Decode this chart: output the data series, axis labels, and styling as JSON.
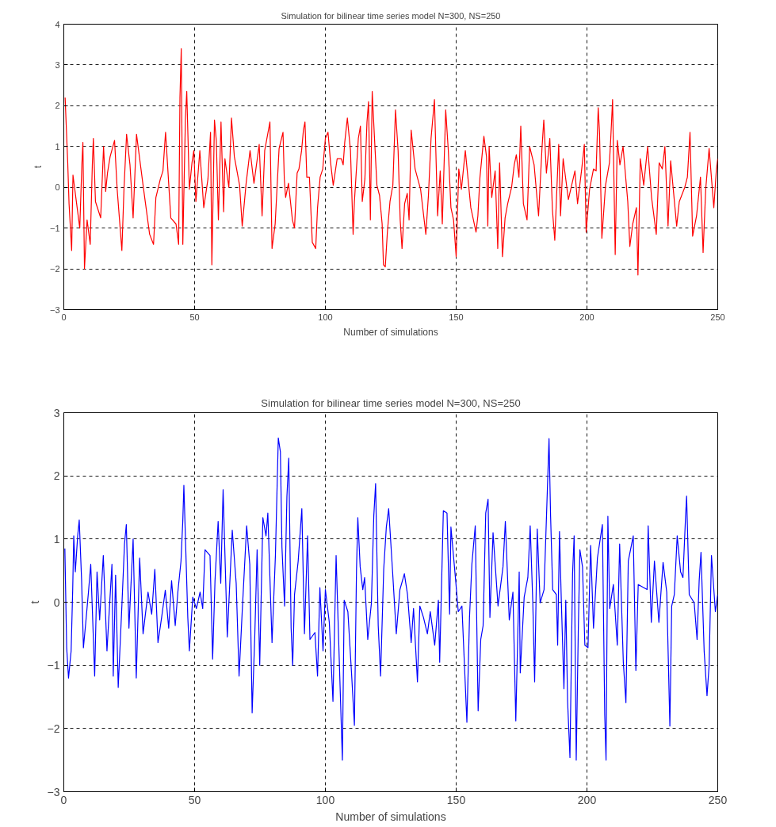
{
  "chart_data": [
    {
      "type": "line",
      "title": "Simulation for bilinear time series model N=300, NS=250",
      "xlabel": "Number of simulations",
      "ylabel": "t",
      "xlim": [
        0,
        250
      ],
      "ylim": [
        -3,
        4
      ],
      "xticks": [
        0,
        50,
        100,
        150,
        200,
        250
      ],
      "yticks": [
        -3,
        -2,
        -1,
        0,
        1,
        2,
        3,
        4
      ],
      "grid": true,
      "marker": "none",
      "line_style": "solid",
      "series": [
        {
          "color": "#ff0000",
          "x": [
            0.5,
            1.5,
            2.0,
            3.0,
            3.5,
            5.1,
            6.1,
            6.9,
            7.3,
            7.9,
            8.9,
            10.1,
            10.9,
            11.3,
            12.1,
            14.1,
            15.2,
            16.0,
            16.7,
            17.7,
            19.4,
            20.4,
            22.2,
            23.0,
            24.0,
            25.3,
            26.5,
            27.8,
            30.3,
            32.8,
            34.3,
            35.2,
            36.9,
            37.9,
            38.9,
            40.9,
            42.9,
            43.9,
            44.4,
            44.9,
            45.5,
            46.5,
            47.0,
            48.0,
            49.0,
            49.7,
            50.5,
            52.0,
            53.5,
            55.1,
            56.1,
            56.6,
            57.6,
            58.3,
            59.1,
            60.1,
            61.1,
            61.6,
            63.1,
            64.1,
            65.2,
            67.2,
            68.2,
            69.7,
            71.2,
            72.7,
            74.7,
            75.8,
            76.8,
            78.8,
            79.6,
            80.8,
            82.3,
            83.8,
            84.3,
            84.8,
            85.9,
            87.4,
            88.2,
            89.2,
            89.9,
            90.9,
            91.6,
            92.2,
            92.9,
            93.9,
            95.0,
            96.3,
            97.0,
            98.0,
            99.0,
            100.0,
            101.0,
            102.0,
            103.0,
            104.5,
            106.1,
            106.8,
            107.4,
            108.4,
            109.6,
            110.6,
            111.1,
            112.6,
            113.4,
            114.1,
            115.1,
            115.9,
            116.5,
            117.2,
            117.9,
            118.7,
            119.7,
            120.7,
            121.7,
            122.2,
            122.9,
            123.7,
            124.7,
            125.8,
            126.8,
            127.8,
            128.6,
            129.3,
            130.3,
            131.3,
            132.0,
            132.8,
            134.3,
            136.4,
            138.4,
            139.4,
            140.4,
            141.7,
            142.9,
            143.9,
            144.7,
            146.0,
            147.0,
            148.0,
            149.0,
            150.0,
            151.0,
            152.0,
            153.5,
            155.6,
            157.6,
            158.3,
            159.1,
            160.6,
            161.6,
            162.1,
            162.6,
            163.6,
            164.9,
            165.9,
            166.6,
            167.7,
            168.7,
            169.7,
            171.2,
            172.2,
            173.0,
            174.0,
            174.7,
            175.7,
            177.1,
            178.1,
            179.8,
            181.5,
            182.8,
            183.5,
            184.5,
            185.8,
            186.8,
            187.7,
            189.2,
            189.9,
            190.9,
            192.9,
            195.4,
            196.4,
            198.0,
            199.0,
            199.7,
            201.0,
            202.5,
            203.5,
            204.3,
            204.8,
            205.7,
            207.1,
            208.6,
            209.1,
            209.8,
            210.8,
            211.6,
            212.6,
            213.8,
            215.6,
            216.4,
            217.5,
            218.9,
            219.5,
            220.4,
            221.7,
            223.2,
            224.7,
            226.5,
            227.6,
            228.8,
            229.8,
            231.0,
            232.0,
            234.3,
            235.3,
            237.4,
            238.4,
            239.4,
            240.4,
            241.9,
            243.4,
            244.4,
            245.4,
            246.7,
            248.5,
            249.5,
            250.0
          ],
          "values": [
            2.2,
            0.6,
            -0.4,
            -1.55,
            0.3,
            -0.5,
            -1.0,
            0.55,
            1.1,
            -2.0,
            -0.8,
            -1.4,
            0.55,
            1.2,
            -0.35,
            -0.75,
            1.0,
            -0.1,
            0.35,
            0.75,
            1.15,
            -0.05,
            -1.55,
            -0.05,
            1.3,
            0.55,
            -0.75,
            1.3,
            0.05,
            -1.15,
            -1.4,
            -0.25,
            0.2,
            0.4,
            1.35,
            -0.75,
            -0.9,
            -1.4,
            2.2,
            3.4,
            -1.4,
            1.7,
            2.35,
            -0.05,
            0.6,
            0.9,
            -0.35,
            0.9,
            -0.5,
            0.2,
            1.35,
            -1.9,
            1.65,
            1.15,
            -0.8,
            1.6,
            -0.6,
            0.7,
            0.0,
            1.7,
            0.75,
            0.05,
            -0.95,
            0.1,
            0.9,
            0.1,
            1.05,
            -0.7,
            0.9,
            1.6,
            -1.5,
            -0.9,
            0.95,
            1.35,
            0.2,
            -0.25,
            0.1,
            -0.8,
            -1.0,
            0.35,
            0.45,
            0.9,
            1.4,
            1.6,
            0.25,
            0.25,
            -1.35,
            -1.5,
            -0.5,
            0.25,
            0.45,
            1.2,
            1.35,
            0.6,
            0.05,
            0.7,
            0.7,
            0.55,
            1.1,
            1.7,
            0.9,
            -1.15,
            -0.35,
            1.2,
            1.5,
            -0.35,
            0.2,
            1.6,
            2.1,
            -0.8,
            2.35,
            1.3,
            0.05,
            -0.2,
            -0.9,
            -1.9,
            -1.95,
            -1.1,
            -0.35,
            0.05,
            1.9,
            0.9,
            -0.8,
            -1.5,
            -0.4,
            -0.15,
            -0.8,
            1.4,
            0.45,
            -0.05,
            -1.15,
            -0.2,
            1.2,
            2.15,
            -0.7,
            0.4,
            -0.9,
            1.9,
            0.9,
            -0.5,
            -0.8,
            -1.7,
            0.45,
            -0.05,
            0.9,
            -0.5,
            -1.1,
            -0.7,
            0.25,
            1.25,
            0.75,
            -0.95,
            1.0,
            -0.25,
            0.4,
            -1.5,
            0.6,
            -1.7,
            -0.75,
            -0.4,
            0.0,
            0.55,
            0.8,
            0.25,
            1.5,
            -0.4,
            -0.8,
            1.0,
            0.55,
            -0.7,
            0.95,
            1.65,
            0.35,
            1.2,
            -0.55,
            -1.3,
            1.05,
            -0.7,
            0.7,
            -0.3,
            0.4,
            -0.4,
            0.45,
            1.05,
            -1.1,
            -0.05,
            0.45,
            0.4,
            1.95,
            1.35,
            -1.25,
            0.05,
            0.6,
            1.2,
            2.15,
            -1.65,
            1.15,
            0.55,
            1.0,
            -0.35,
            -1.45,
            -0.9,
            -0.5,
            -2.15,
            0.7,
            0.05,
            1.0,
            -0.25,
            -1.15,
            0.6,
            0.45,
            1.0,
            -0.95,
            0.65,
            -0.95,
            -0.35,
            0.0,
            0.25,
            1.35,
            -1.2,
            -0.7,
            0.25,
            -1.6,
            -0.05,
            0.95,
            -0.5,
            0.45,
            0.7
          ]
        }
      ]
    },
    {
      "type": "line",
      "title": "Simulation for bilinear time series model N=300, NS=250",
      "xlabel": "Number of simulations",
      "ylabel": "t",
      "xlim": [
        0,
        250
      ],
      "ylim": [
        -3,
        3
      ],
      "xticks": [
        0,
        50,
        100,
        150,
        200,
        250
      ],
      "yticks": [
        -3,
        -2,
        -1,
        0,
        1,
        2,
        3
      ],
      "grid": true,
      "marker": "none",
      "line_style": "solid",
      "series": [
        {
          "color": "#0000ff",
          "x": [
            0.4,
            1.1,
            1.8,
            2.8,
            3.4,
            3.8,
            4.4,
            5.3,
            5.9,
            6.8,
            7.5,
            8.4,
            9.4,
            10.3,
            11.8,
            12.7,
            13.7,
            15.1,
            16.5,
            18.4,
            18.9,
            19.8,
            20.8,
            22.2,
            23.2,
            23.9,
            24.9,
            26.5,
            27.7,
            29.0,
            30.3,
            32.2,
            33.6,
            34.8,
            36.0,
            37.4,
            38.8,
            40.1,
            41.2,
            42.6,
            43.6,
            44.8,
            45.5,
            45.9,
            47.4,
            48.0,
            49.3,
            50.7,
            52.1,
            53.1,
            54.0,
            55.9,
            56.9,
            57.8,
            59.0,
            60.0,
            60.9,
            62.5,
            64.4,
            65.9,
            67.0,
            68.2,
            69.9,
            71.1,
            72.0,
            73.0,
            73.9,
            74.9,
            76.1,
            77.3,
            78.0,
            79.6,
            80.9,
            82.0,
            82.8,
            83.4,
            84.4,
            85.3,
            86.0,
            86.9,
            87.5,
            88.2,
            89.6,
            91.0,
            92.0,
            93.2,
            94.1,
            96.0,
            97.0,
            97.9,
            99.1,
            100.0,
            101.5,
            102.9,
            104.1,
            105.3,
            106.5,
            107.2,
            108.6,
            110.0,
            111.1,
            111.9,
            112.4,
            113.3,
            114.3,
            115.0,
            116.2,
            117.6,
            118.5,
            119.2,
            120.2,
            121.1,
            122.3,
            123.3,
            124.2,
            125.7,
            127.1,
            128.5,
            130.2,
            131.4,
            132.8,
            133.7,
            135.2,
            136.1,
            137.5,
            139.0,
            140.1,
            141.8,
            143.2,
            143.7,
            145.1,
            146.5,
            147.5,
            148.0,
            149.9,
            150.8,
            152.2,
            154.1,
            155.1,
            156.0,
            157.3,
            158.4,
            159.4,
            160.3,
            161.3,
            162.2,
            162.9,
            164.1,
            166.0,
            167.9,
            168.8,
            170.3,
            171.7,
            172.8,
            174.1,
            174.5,
            176.0,
            177.4,
            178.3,
            179.3,
            180.0,
            181.0,
            182.1,
            183.6,
            184.5,
            185.5,
            186.1,
            186.9,
            188.3,
            188.8,
            189.5,
            190.2,
            191.2,
            191.9,
            192.6,
            193.5,
            194.5,
            195.1,
            195.9,
            196.7,
            197.3,
            198.3,
            199.2,
            200.4,
            201.4,
            202.5,
            204.0,
            205.9,
            206.8,
            207.3,
            208.0,
            208.7,
            210.1,
            211.6,
            212.5,
            213.9,
            214.9,
            215.8,
            217.7,
            218.7,
            219.6,
            223.0,
            223.4,
            224.6,
            225.8,
            227.5,
            229.1,
            230.5,
            231.7,
            232.4,
            233.4,
            234.5,
            235.8,
            236.7,
            237.7,
            238.1,
            239.1,
            241.0,
            242.1,
            242.9,
            243.6,
            244.8,
            245.9,
            246.7,
            247.6,
            249.1,
            250.0
          ],
          "values": [
            0.85,
            -0.72,
            -1.2,
            -0.77,
            0.2,
            1.05,
            0.48,
            1.05,
            1.3,
            0.35,
            -0.72,
            -0.32,
            0.15,
            0.6,
            -1.17,
            0.48,
            -0.28,
            0.74,
            -0.77,
            0.6,
            -1.17,
            0.43,
            -1.35,
            -0.06,
            0.92,
            1.23,
            -0.41,
            1.0,
            -1.2,
            0.7,
            -0.5,
            0.16,
            -0.19,
            0.52,
            -0.64,
            -0.24,
            0.19,
            -0.41,
            0.34,
            -0.37,
            0.16,
            0.65,
            1.3,
            1.85,
            -0.24,
            -0.77,
            0.08,
            -0.1,
            0.16,
            -0.1,
            0.83,
            0.74,
            -0.9,
            0.34,
            1.28,
            0.3,
            1.78,
            -0.55,
            1.14,
            0.3,
            -1.17,
            -0.15,
            1.21,
            0.6,
            -1.75,
            -0.55,
            0.83,
            -1.0,
            1.34,
            1.05,
            1.41,
            -0.64,
            0.74,
            2.6,
            2.38,
            0.87,
            -0.06,
            1.68,
            2.28,
            -0.41,
            -1.0,
            0.12,
            0.65,
            1.48,
            -0.5,
            1.05,
            -0.59,
            -0.48,
            -1.17,
            0.23,
            -0.77,
            0.2,
            -0.32,
            -1.57,
            0.74,
            -0.9,
            -2.5,
            0.03,
            -0.15,
            -1.12,
            -1.95,
            0.52,
            1.34,
            0.56,
            0.2,
            0.39,
            -0.59,
            -0.01,
            1.36,
            1.88,
            -0.37,
            -1.17,
            0.52,
            1.19,
            1.48,
            0.48,
            -0.5,
            0.2,
            0.45,
            0.12,
            -0.64,
            -0.1,
            -1.26,
            -0.06,
            -0.24,
            -0.5,
            -0.15,
            -0.68,
            0.03,
            -0.95,
            1.45,
            1.41,
            -0.19,
            1.19,
            0.3,
            -0.15,
            -0.06,
            -1.9,
            -0.24,
            0.6,
            1.21,
            -1.72,
            -0.59,
            -0.37,
            1.41,
            1.63,
            -0.24,
            1.1,
            -0.06,
            0.56,
            1.28,
            -0.28,
            0.16,
            -1.88,
            0.48,
            -1.12,
            0.08,
            0.39,
            1.21,
            -0.01,
            -1.26,
            1.16,
            -0.01,
            0.2,
            1.32,
            2.59,
            1.36,
            0.2,
            0.12,
            -0.68,
            1.12,
            0.03,
            -1.37,
            0.03,
            -1.57,
            -2.46,
            0.45,
            1.05,
            -2.5,
            -0.41,
            0.83,
            0.56,
            -0.68,
            -0.72,
            0.9,
            -0.41,
            0.7,
            1.23,
            -1.79,
            -2.5,
            1.36,
            -0.1,
            0.28,
            -0.68,
            0.92,
            -0.95,
            -1.59,
            0.65,
            1.05,
            -1.08,
            0.28,
            0.2,
            1.21,
            -0.32,
            0.65,
            -0.32,
            0.63,
            0.16,
            -1.96,
            -0.06,
            0.12,
            1.05,
            0.48,
            0.39,
            1.36,
            1.68,
            0.12,
            -0.01,
            -0.59,
            0.34,
            0.79,
            -0.77,
            -1.48,
            -1.0,
            0.74,
            -0.15,
            0.12
          ]
        }
      ]
    }
  ]
}
